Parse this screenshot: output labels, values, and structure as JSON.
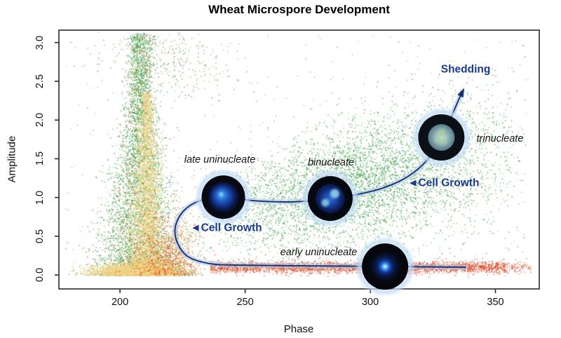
{
  "chart_data": {
    "type": "scatter",
    "title": "Wheat Microspore Development",
    "xlabel": "Phase",
    "ylabel": "Amplitude",
    "xlim": [
      175.6,
      367.5
    ],
    "ylim": [
      -0.18,
      3.16
    ],
    "xticks": [
      "200",
      "250",
      "300",
      "350"
    ],
    "yticks": [
      "0.0",
      "0.5",
      "1.0",
      "1.5",
      "2.0",
      "2.5",
      "3.0"
    ],
    "grid": false,
    "frame_color": "#2b2b2b",
    "palettes": {
      "green": [
        "#2f8f3c",
        "#3fa04a",
        "#55b35c",
        "#74c279",
        "#93d191",
        "#27803a"
      ],
      "green_mix": [
        "#2f8f3c",
        "#3fa04a",
        "#55b35c",
        "#74c279",
        "#93d191",
        "#27803a",
        "#3fa04a",
        "#55b35c",
        "#2f8f3c",
        "#74c279",
        "#3fa04a",
        "#55b35c",
        "#93d191",
        "#27803a",
        "#2f8f3c",
        "#3fa04a",
        "#ee8c36",
        "#d62f1d"
      ],
      "yellow": [
        "#f1d383",
        "#eecb74",
        "#f5dd96",
        "#ecd68f"
      ],
      "orange_red": [
        "#ee8c36",
        "#e67d28",
        "#f19e50",
        "#df7020",
        "#d62f1d"
      ],
      "red_orange": [
        "#d62f1d",
        "#c8281a",
        "#e2472a",
        "#b92217",
        "#d62f1d",
        "#e2472a",
        "#ee8c36",
        "#f07a2e"
      ],
      "mixed": [
        "#3fa04a",
        "#55b35c",
        "#2f8f3c",
        "#74c279",
        "#ee8c36",
        "#d62f1d",
        "#3fa04a",
        "#55b35c"
      ]
    },
    "clusters": [
      {
        "name": "green-plume",
        "kind": "plume",
        "count": 6000,
        "x_center": 208,
        "amp_max": 3.12,
        "amp_pow": 1.9,
        "sigma_base": 9.5,
        "sigma_slope": -3.0,
        "sigma_min": 2.5,
        "palette": "green_mix",
        "size": 1.4
      },
      {
        "name": "yellow-core",
        "kind": "plume",
        "count": 3400,
        "x_center": 210.5,
        "amp_max": 2.35,
        "amp_pow": 2.0,
        "sigma_base": 4.5,
        "sigma_slope": -1.5,
        "sigma_min": 1.1,
        "palette": "yellow",
        "size": 1.6
      },
      {
        "name": "yellow-base",
        "kind": "blob",
        "count": 2600,
        "x_mean": 207,
        "x_sigma": 8.5,
        "amp_mean": 0.05,
        "amp_sigma": 0.05,
        "amp_abs": true,
        "palette": "yellow",
        "size": 1.6
      },
      {
        "name": "orange-blob",
        "kind": "blob",
        "count": 950,
        "x_mean": 219,
        "x_sigma": 7,
        "amp_mean": 0.15,
        "amp_sigma": 0.3,
        "amp_abs": true,
        "palette": "orange_red",
        "size": 1.4
      },
      {
        "name": "red-band",
        "kind": "band",
        "count": 3200,
        "x_min": 236,
        "x_max": 354,
        "amp_mean": 0.105,
        "amp_sigma": 0.038,
        "palette": "red_orange",
        "size": 1.3
      },
      {
        "name": "green-cloud",
        "kind": "ascend",
        "count": 5200,
        "x_min": 228,
        "x_max": 363,
        "amp_base": 0.72,
        "amp_slope": 0.0068,
        "sigma_base": 0.26,
        "sigma_slope": 0.0022,
        "palette": "green",
        "size": 1.4
      },
      {
        "name": "top-sparse",
        "kind": "blob",
        "count": 330,
        "x_mean": 219,
        "x_sigma": 13,
        "amp_mean": 2.72,
        "amp_sigma": 0.26,
        "amp_abs": false,
        "palette": "mixed",
        "size": 1.3
      },
      {
        "name": "field-sparse",
        "kind": "uniform",
        "count": 420,
        "x_min": 178,
        "x_max": 364,
        "amp_min": 0.02,
        "amp_max": 3.1,
        "palette": "mixed",
        "size": 1.2
      }
    ],
    "trajectory": {
      "color": "#1b2f6e",
      "halo_color": "#aac6e6",
      "points": [
        [
          338.2,
          0.1
        ],
        [
          309.3,
          0.109
        ],
        [
          272.8,
          0.118
        ],
        [
          247.5,
          0.127
        ],
        [
          236.2,
          0.145
        ],
        [
          227.2,
          0.236
        ],
        [
          222.8,
          0.426
        ],
        [
          222.2,
          0.634
        ],
        [
          225.6,
          0.833
        ],
        [
          232.0,
          0.96
        ],
        [
          241.3,
          1.005
        ],
        [
          253.1,
          0.96
        ],
        [
          267.1,
          0.942
        ],
        [
          277.0,
          0.96
        ],
        [
          284.0,
          0.987
        ],
        [
          293.8,
          1.033
        ],
        [
          305.1,
          1.123
        ],
        [
          314.9,
          1.268
        ],
        [
          322.8,
          1.486
        ],
        [
          328.4,
          1.775
        ],
        [
          331.7,
          1.993
        ],
        [
          335.1,
          2.246
        ],
        [
          336.8,
          2.364
        ]
      ],
      "arrow_at_end": true
    },
    "cells": [
      {
        "id": "early-uninucleate-cell",
        "type": "early",
        "phase": 305.9,
        "amp": 0.109,
        "radius": 33
      },
      {
        "id": "late-uninucleate-cell",
        "type": "late",
        "phase": 241.3,
        "amp": 1.005,
        "radius": 31
      },
      {
        "id": "binucleate-cell",
        "type": "bi",
        "phase": 284.0,
        "amp": 0.987,
        "radius": 32
      },
      {
        "id": "trinucleate-cell",
        "type": "tri",
        "phase": 328.4,
        "amp": 1.775,
        "radius": 33
      }
    ],
    "annotations": [
      {
        "id": "late-uninucleate-label",
        "text": "late uninucleate",
        "phase": 239.9,
        "amp": 1.485,
        "style": "stage"
      },
      {
        "id": "binucleate-label",
        "text": "binucleate",
        "phase": 284.3,
        "amp": 1.45,
        "style": "stage"
      },
      {
        "id": "trinucleate-label",
        "text": "trinucleate",
        "phase": 351.8,
        "amp": 1.757,
        "style": "stage"
      },
      {
        "id": "early-uninucleate-label",
        "text": "early uninucleate",
        "phase": 279.4,
        "amp": 0.29,
        "style": "stage"
      },
      {
        "id": "shedding-label",
        "text": "Shedding",
        "phase": 338.1,
        "amp": 2.654,
        "style": "flow"
      },
      {
        "id": "cell-growth-label-1",
        "text": "◄Cell Growth",
        "phase": 242.4,
        "amp": 0.607,
        "style": "flow"
      },
      {
        "id": "cell-growth-label-2",
        "text": "◄Cell Growth",
        "phase": 329.2,
        "amp": 1.187,
        "style": "flow"
      }
    ],
    "colors": {
      "stage_label": "#141414",
      "flow_label": "#1a3a8c",
      "tick_text": "#111111"
    }
  }
}
